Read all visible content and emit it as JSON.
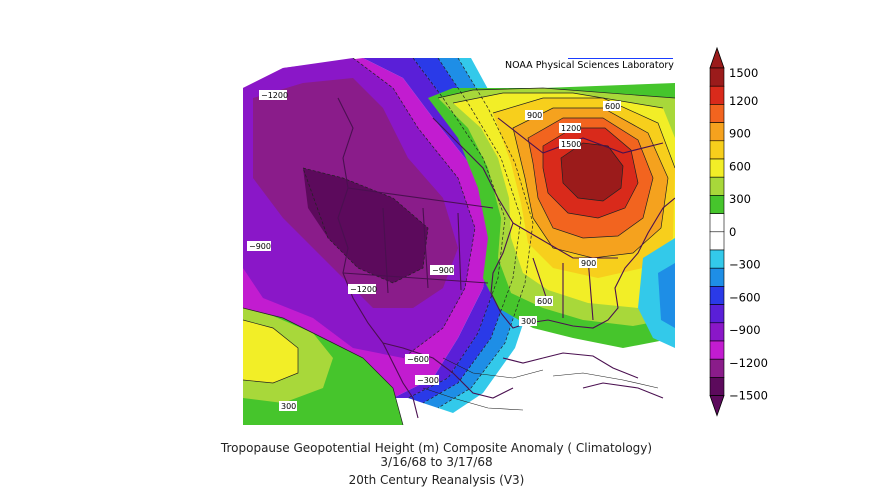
{
  "credit": "NOAA Physical Sciences Laboratory",
  "title": "Tropopause Geopotential Height (m) Composite Anomaly ( Climatology)",
  "date_range": "3/16/68  to 3/17/68",
  "dataset": "20th Century Reanalysis (V3)",
  "colorbar": {
    "ticks": [
      "1500",
      "1200",
      "900",
      "600",
      "300",
      "0",
      "−300",
      "−600",
      "−900",
      "−1200",
      "−1500"
    ],
    "colors": [
      "#9b1b1b",
      "#d92a1b",
      "#f2641f",
      "#f5a21e",
      "#f7cf1c",
      "#f2ee27",
      "#a8d83a",
      "#46c52c",
      "#ffffff",
      "#ffffff",
      "#33c9ea",
      "#1e8ee6",
      "#2a3ae8",
      "#5a1fd8",
      "#8a17c8",
      "#c21cd0",
      "#8a1c8a",
      "#5c0a5c"
    ]
  },
  "contour_labels": [
    {
      "text": "−1200"
    },
    {
      "text": "−900"
    },
    {
      "text": "−1200"
    },
    {
      "text": "−900"
    },
    {
      "text": "−600"
    },
    {
      "text": "−300"
    },
    {
      "text": "300"
    },
    {
      "text": "300"
    },
    {
      "text": "600"
    },
    {
      "text": "900"
    },
    {
      "text": "900"
    },
    {
      "text": "1200"
    },
    {
      "text": "1500"
    },
    {
      "text": "600"
    }
  ]
}
